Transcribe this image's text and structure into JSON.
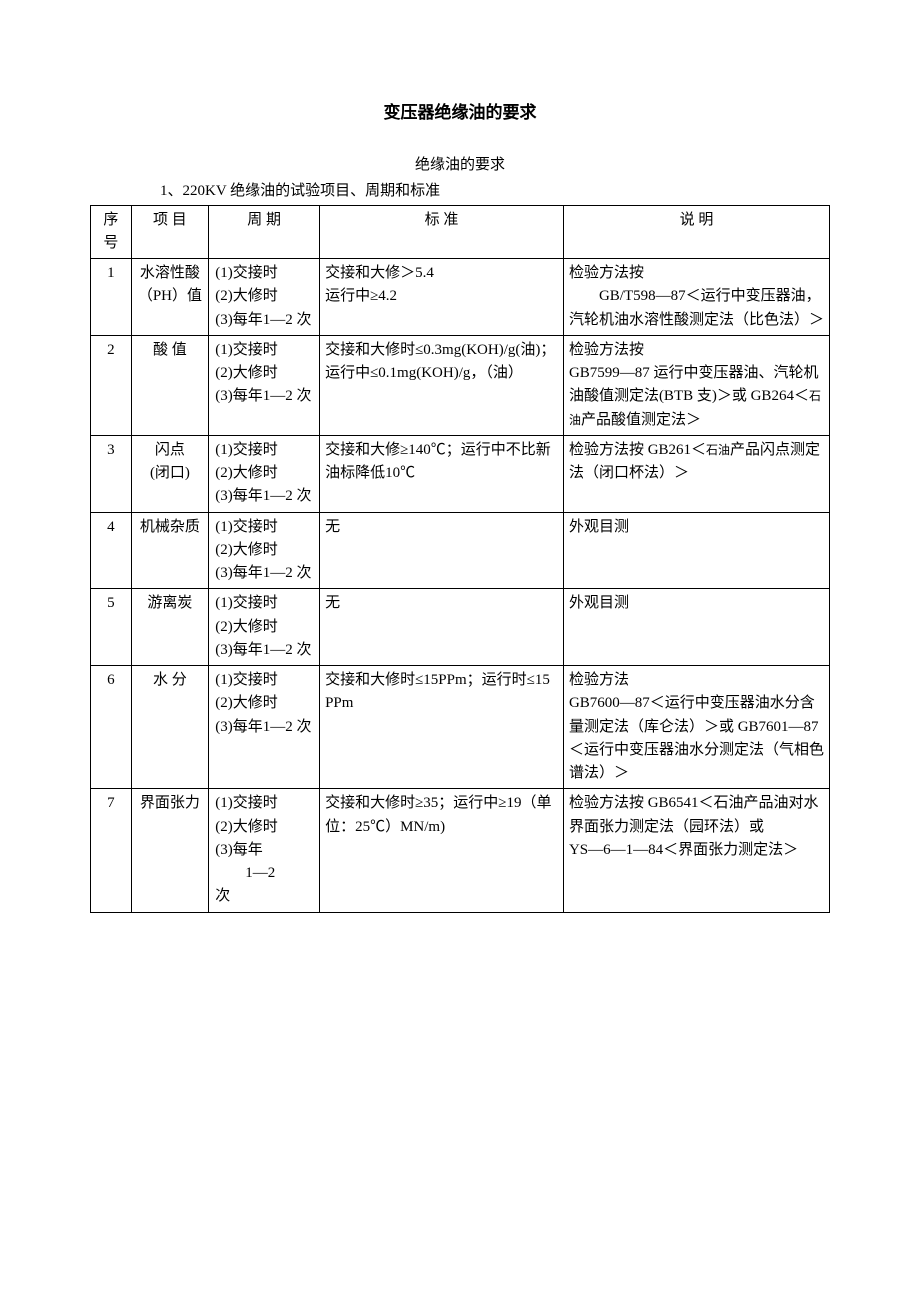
{
  "title": "变压器绝缘油的要求",
  "subtitle": "绝缘油的要求",
  "intro": "1、220KV 绝缘油的试验项目、周期和标准",
  "headers": {
    "seq": "序号",
    "item": "项 目",
    "period": "周 期",
    "standard": "标 准",
    "desc": "说 明"
  },
  "rows": [
    {
      "seq": "1",
      "item": "水溶性酸（PH）值",
      "period": "(1)交接时\n(2)大修时\n(3)每年1—2 次",
      "standard": "交接和大修＞5.4\n运行中≥4.2",
      "desc": "检验方法按\n　　GB/T598—87＜运行中变压器油，汽轮机油水溶性酸测定法（比色法）＞"
    },
    {
      "seq": "2",
      "item": "酸 值",
      "period": "(1)交接时\n(2)大修时\n(3)每年1—2 次",
      "standard": "交接和大修时≤0.3mg(KOH)/g(油)；运行中≤0.1mg(KOH)/g，（油）",
      "desc": "检验方法按\nGB7599—87 运行中变压器油、汽轮机油酸值测定法(BTB 支)＞或 GB264＜石油产品酸值测定法＞",
      "desc_small_at": "石油"
    },
    {
      "seq": "3",
      "item": "闪点\n(闭口)",
      "period": "(1)交接时\n(2)大修时\n(3)每年1—2 次",
      "standard": "交接和大修≥140℃；运行中不比新油标降低10℃",
      "desc": "检验方法按 GB261＜石油产品闪点测定法（闭口杯法）＞",
      "desc_small_at": "石油"
    },
    {
      "seq": "4",
      "item": "机械杂质",
      "period": "(1)交接时\n(2)大修时\n(3)每年1—2 次",
      "standard": "无",
      "desc": "外观目测"
    },
    {
      "seq": "5",
      "item": "游离炭",
      "period": "(1)交接时\n(2)大修时\n(3)每年1—2 次",
      "standard": "无",
      "desc": "外观目测"
    },
    {
      "seq": "6",
      "item": "水 分",
      "period": "(1)交接时\n(2)大修时\n(3)每年1—2 次",
      "standard": "交接和大修时≤15PPm；运行时≤15 PPm",
      "desc": "检验方法\nGB7600—87＜运行中变压器油水分含量测定法（库仑法）＞或 GB7601—87＜运行中变压器油水分测定法（气相色谱法）＞"
    },
    {
      "seq": "7",
      "item": "界面张力",
      "period": "(1)交接时\n(2)大修时\n(3)每年\n　　1—2\n次",
      "standard": "交接和大修时≥35；运行中≥19（单位：25℃）MN/m)",
      "desc": "检验方法按 GB6541＜石油产品油对水界面张力测定法（园环法）或\nYS—6—1—84＜界面张力测定法＞"
    }
  ]
}
